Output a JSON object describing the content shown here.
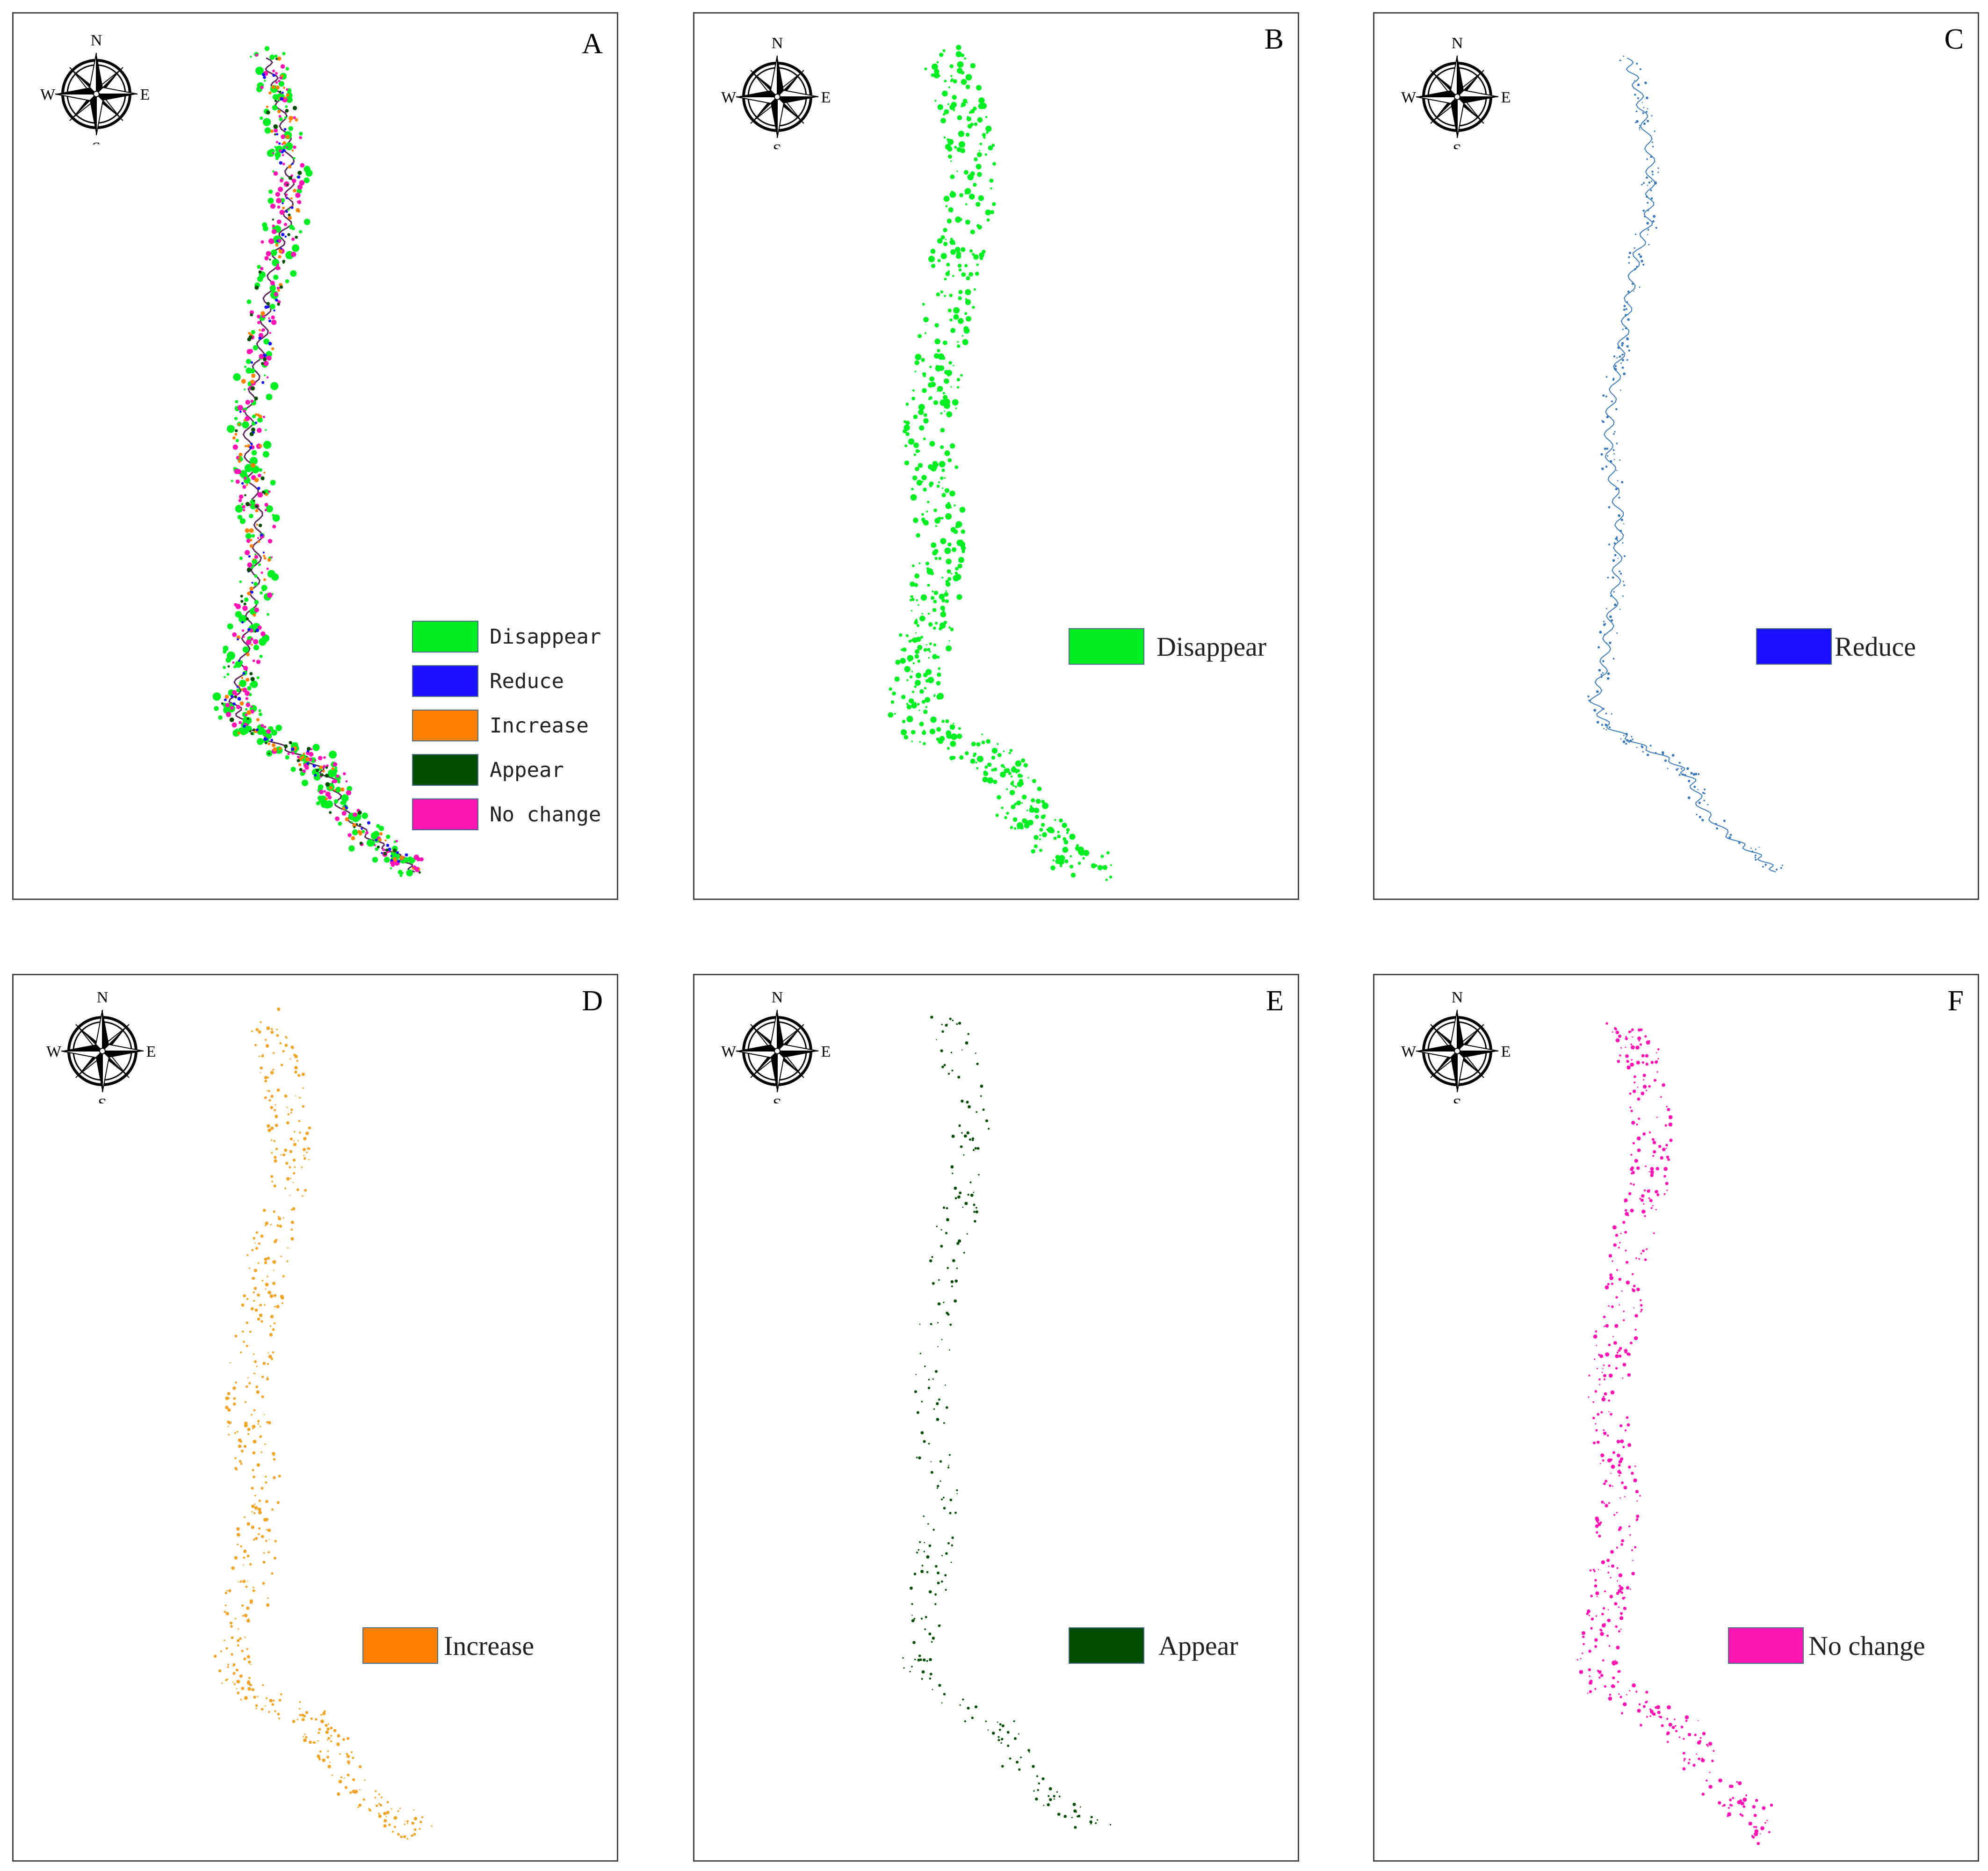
{
  "compass": {
    "n": "N",
    "s": "S",
    "e": "E",
    "w": "W"
  },
  "colors": {
    "disappear": "#00ee22",
    "reduce": "#1a10ff",
    "increase": "#ff7f00",
    "appear": "#004d00",
    "no_change": "#ff14b4",
    "reduce_map": "#3a78b8",
    "increase_map": "#f0a428",
    "river": "#5a2a5a"
  },
  "panels": [
    {
      "letter": "A",
      "legend": [
        {
          "label": "Disappear",
          "color": "#00ee22"
        },
        {
          "label": "Reduce",
          "color": "#1a10ff"
        },
        {
          "label": "Increase",
          "color": "#ff7f00"
        },
        {
          "label": "Appear",
          "color": "#004d00"
        },
        {
          "label": "No change",
          "color": "#ff14b4"
        }
      ]
    },
    {
      "letter": "B",
      "legend": [
        {
          "label": "Disappear",
          "color": "#00ee22"
        }
      ]
    },
    {
      "letter": "C",
      "legend": [
        {
          "label": "Reduce",
          "color": "#1a10ff"
        }
      ]
    },
    {
      "letter": "D",
      "legend": [
        {
          "label": "Increase",
          "color": "#ff7f00"
        }
      ]
    },
    {
      "letter": "E",
      "legend": [
        {
          "label": "Appear",
          "color": "#004d00"
        }
      ]
    },
    {
      "letter": "F",
      "legend": [
        {
          "label": "No change",
          "color": "#ff14b4"
        }
      ]
    }
  ]
}
